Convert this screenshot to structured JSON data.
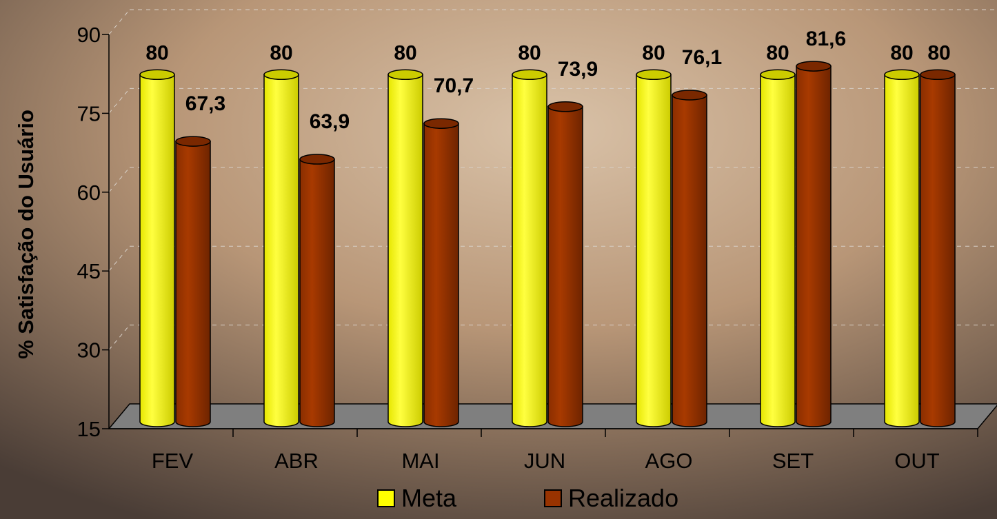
{
  "chart_data": {
    "type": "bar",
    "title": "",
    "xlabel": "",
    "ylabel": "% Satisfação do Usuário",
    "ylim": [
      15,
      90
    ],
    "yticks": [
      "90",
      "75",
      "60",
      "45",
      "30",
      "15"
    ],
    "categories": [
      "FEV",
      "ABR",
      "MAI",
      "JUN",
      "AGO",
      "SET",
      "OUT"
    ],
    "series": [
      {
        "name": "Meta",
        "values": [
          80,
          80,
          80,
          80,
          80,
          80,
          80
        ],
        "labels": [
          "80",
          "80",
          "80",
          "80",
          "80",
          "80",
          "80"
        ],
        "color": "#ffff00"
      },
      {
        "name": "Realizado",
        "values": [
          67.3,
          63.9,
          70.7,
          73.9,
          76.1,
          81.6,
          80
        ],
        "labels": [
          "67,3",
          "63,9",
          "70,7",
          "73,9",
          "76,1",
          "81,6",
          "80"
        ],
        "color": "#993300"
      }
    ],
    "legend": "bottom",
    "grid": true,
    "style": "3d-cylinder"
  }
}
